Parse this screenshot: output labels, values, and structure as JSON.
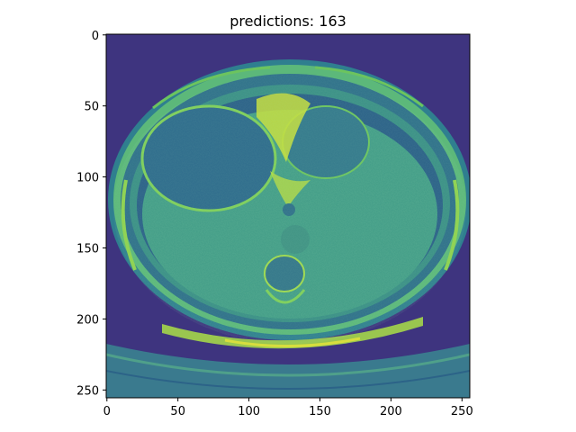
{
  "figure": {
    "title": "predictions: 163",
    "image_description_colormap": "viridis",
    "x_ticks": [
      "0",
      "50",
      "100",
      "150",
      "200",
      "250"
    ],
    "y_ticks": [
      "0",
      "50",
      "100",
      "150",
      "200",
      "250"
    ],
    "x_tick_values": [
      0,
      50,
      100,
      150,
      200,
      250
    ],
    "y_tick_values": [
      0,
      50,
      100,
      150,
      200,
      250
    ],
    "image_size": [
      256,
      256
    ]
  },
  "colors": {
    "background_dark": "#3b2f7a",
    "soft_tissue": "#2f7f8f",
    "bright_tissue": "#a4d64a",
    "highlight": "#e6e43a",
    "mid": "#3f9a86"
  }
}
